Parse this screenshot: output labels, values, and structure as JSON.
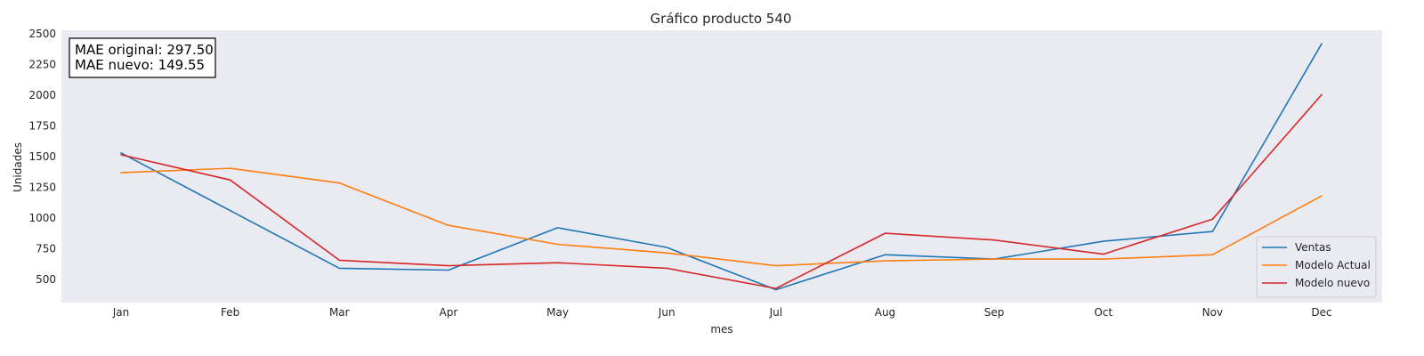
{
  "chart_data": {
    "type": "line",
    "title": "Gráfico producto 540",
    "xlabel": "mes",
    "ylabel": "Unidades",
    "categories": [
      "Jan",
      "Feb",
      "Mar",
      "Apr",
      "May",
      "Jun",
      "Jul",
      "Aug",
      "Sep",
      "Oct",
      "Nov",
      "Dec"
    ],
    "yticks": [
      500,
      750,
      1000,
      1250,
      1500,
      1750,
      2000,
      2250,
      2500
    ],
    "ylim": [
      310,
      2530
    ],
    "grid": false,
    "background": "#eaeaf2",
    "legend_position": "lower-right",
    "annotation": {
      "line1": "MAE original: 297.50",
      "line2": "MAE nuevo: 149.55"
    },
    "series": [
      {
        "name": "Ventas",
        "color": "#1f77b4",
        "values": [
          1530,
          1060,
          590,
          575,
          920,
          760,
          415,
          700,
          665,
          810,
          890,
          2420
        ]
      },
      {
        "name": "Modelo Actual",
        "color": "#ff7f0e",
        "values": [
          1370,
          1405,
          1285,
          940,
          785,
          715,
          610,
          650,
          665,
          665,
          700,
          1180
        ]
      },
      {
        "name": "Modelo nuevo",
        "color": "#d62728",
        "values": [
          1515,
          1310,
          655,
          610,
          635,
          590,
          425,
          875,
          820,
          705,
          990,
          2005
        ]
      }
    ]
  }
}
